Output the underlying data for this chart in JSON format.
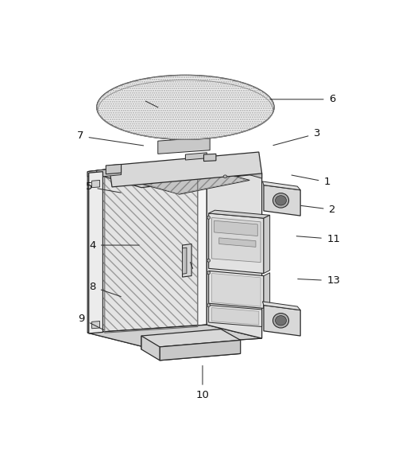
{
  "background_color": "#ffffff",
  "line_color": "#2a2a2a",
  "figsize": [
    5.02,
    5.78
  ],
  "dpi": 100,
  "labels_info": [
    [
      1,
      452,
      207,
      390,
      195
    ],
    [
      2,
      460,
      252,
      405,
      245
    ],
    [
      3,
      435,
      128,
      360,
      148
    ],
    [
      4,
      68,
      310,
      148,
      310
    ],
    [
      5,
      62,
      215,
      118,
      225
    ],
    [
      6,
      460,
      72,
      355,
      72
    ],
    [
      7,
      48,
      132,
      155,
      148
    ],
    [
      8,
      68,
      378,
      118,
      395
    ],
    [
      9,
      50,
      430,
      90,
      450
    ],
    [
      10,
      248,
      555,
      248,
      503
    ],
    [
      11,
      462,
      300,
      398,
      295
    ],
    [
      13,
      462,
      368,
      400,
      365
    ]
  ]
}
